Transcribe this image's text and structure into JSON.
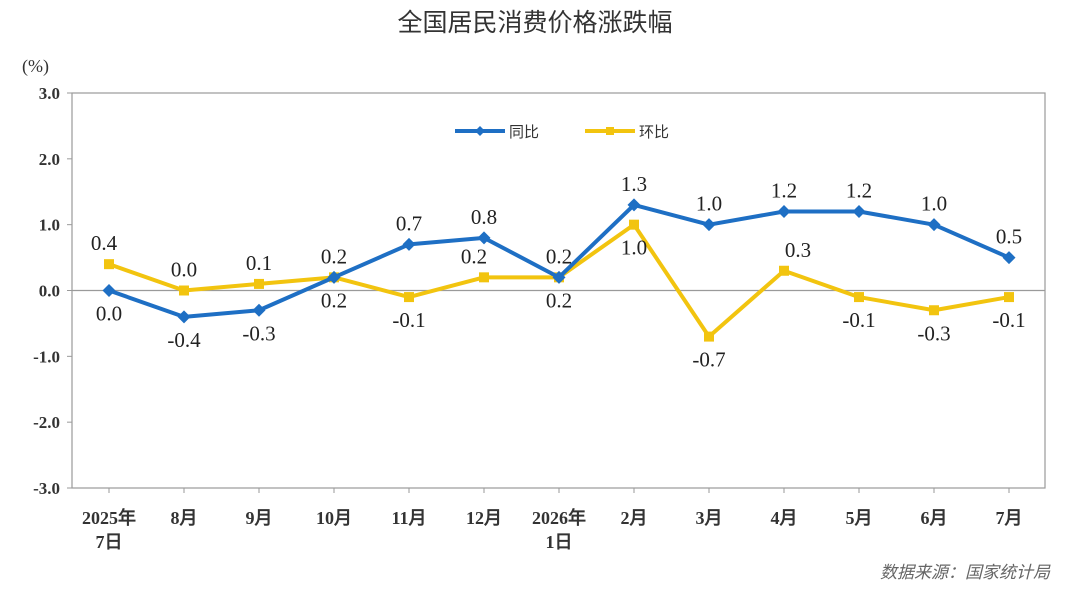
{
  "chart_data": {
    "type": "line",
    "title": "全国居民消费价格涨跌幅",
    "unit": "(%)",
    "categories": [
      [
        "2025年",
        "7日"
      ],
      [
        "8月"
      ],
      [
        "9月"
      ],
      [
        "10月"
      ],
      [
        "11月"
      ],
      [
        "12月"
      ],
      [
        "2026年",
        "1日"
      ],
      [
        "2月"
      ],
      [
        "3月"
      ],
      [
        "4月"
      ],
      [
        "5月"
      ],
      [
        "6月"
      ],
      [
        "7月"
      ]
    ],
    "ylim": [
      -3.0,
      3.0
    ],
    "yticks": [
      "3.0",
      "2.0",
      "1.0",
      "0.0",
      "-1.0",
      "-2.0",
      "-3.0"
    ],
    "legend_position": "top-center",
    "series": [
      {
        "name": "同比",
        "color": "#1e6fc4",
        "marker": "diamond",
        "values": [
          0.0,
          -0.4,
          -0.3,
          0.2,
          0.7,
          0.8,
          0.2,
          1.3,
          1.0,
          1.2,
          1.2,
          1.0,
          0.5
        ],
        "labels": [
          "0.0",
          "-0.4",
          "-0.3",
          "0.2",
          "0.7",
          "0.8",
          "0.2",
          "1.3",
          "1.0",
          "1.2",
          "1.2",
          "1.0",
          "0.5"
        ]
      },
      {
        "name": "环比",
        "color": "#f2c40f",
        "marker": "square",
        "values": [
          0.4,
          0.0,
          0.1,
          0.2,
          -0.1,
          0.2,
          0.2,
          1.0,
          -0.7,
          0.3,
          -0.1,
          -0.3,
          -0.1
        ],
        "labels": [
          "0.4",
          "0.0",
          "0.1",
          "0.2",
          "-0.1",
          "0.2",
          "0.2",
          "1.0",
          "-0.7",
          "0.3",
          "-0.1",
          "-0.3",
          "-0.1"
        ]
      }
    ],
    "source": "数据来源：国家统计局"
  }
}
